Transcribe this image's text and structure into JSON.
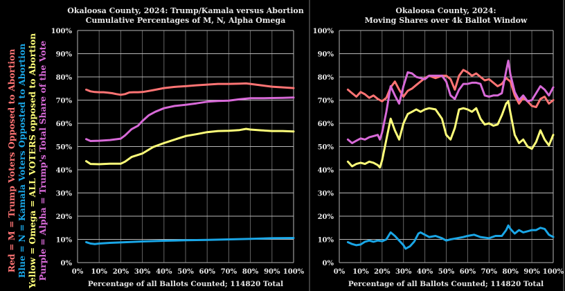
{
  "colors": {
    "background": "#000000",
    "grid": "#b8b8b8",
    "text": "#e8e8e8",
    "red": "#ff7474",
    "blue": "#1aa6e6",
    "yellow": "#ffff7a",
    "purple": "#d86ad8"
  },
  "legend": [
    {
      "parts": [
        [
          "Red = M = Trump Voters ",
          "red"
        ],
        [
          "Opposed",
          "red"
        ],
        [
          " to Abortion",
          "red"
        ]
      ],
      "color": "red",
      "text": "Red = M = Trump Voters Opposed to Abortion"
    },
    {
      "color": "blue",
      "text": "Blue = N = Kamala Voters Opposted to Abortion"
    },
    {
      "color": "yellow",
      "text": "Yellow = Omega = ALL VOTERS opposed to Abortion"
    },
    {
      "color": "purple",
      "text": "Purple = Alpha = Trump's Total Share of the Vote"
    }
  ],
  "chart_data": [
    {
      "type": "line",
      "title": "Okaloosa County, 2024: Trump/Kamala versus Abortion",
      "subtitle": "Cumulative Percentages of M, N, Alpha Omega",
      "xlabel": "Percentage of all Ballots Counted; 114820 Total",
      "ylabel": "",
      "xlim": [
        0,
        100
      ],
      "ylim": [
        0,
        100
      ],
      "grid": true,
      "xticks": [
        "0%",
        "10%",
        "20%",
        "30%",
        "40%",
        "50%",
        "60%",
        "70%",
        "80%",
        "90%",
        "100%"
      ],
      "yticks": [
        "0%",
        "10%",
        "20%",
        "30%",
        "40%",
        "50%",
        "60%",
        "70%",
        "80%",
        "90%",
        "100%"
      ],
      "series": [
        {
          "name": "Red = M",
          "color": "red",
          "x": [
            4,
            6,
            8,
            10,
            12,
            14,
            16,
            18,
            20,
            22,
            24,
            26,
            28,
            30,
            32,
            35,
            40,
            45,
            50,
            55,
            60,
            65,
            70,
            75,
            78,
            80,
            85,
            90,
            95,
            100
          ],
          "values": [
            74.5,
            73.8,
            73.5,
            73.4,
            73.4,
            73.2,
            73.0,
            72.6,
            72.3,
            72.6,
            73.3,
            73.4,
            73.4,
            73.5,
            73.8,
            74.3,
            75.2,
            75.7,
            76.0,
            76.4,
            76.7,
            77.0,
            77.0,
            77.1,
            77.2,
            77.0,
            76.4,
            75.8,
            75.5,
            75.2
          ]
        },
        {
          "name": "Purple = Alpha",
          "color": "purple",
          "x": [
            4,
            6,
            10,
            15,
            20,
            22,
            25,
            28,
            30,
            33,
            36,
            40,
            45,
            50,
            55,
            60,
            65,
            70,
            75,
            80,
            85,
            90,
            95,
            100
          ],
          "values": [
            53.2,
            52.4,
            52.5,
            52.8,
            53.4,
            54.8,
            57.5,
            59.0,
            61.0,
            63.5,
            65.0,
            66.5,
            67.5,
            68.0,
            68.6,
            69.3,
            69.6,
            69.8,
            70.4,
            70.8,
            70.8,
            70.9,
            71.0,
            71.1
          ]
        },
        {
          "name": "Yellow = Omega",
          "color": "yellow",
          "x": [
            4,
            6,
            10,
            15,
            20,
            22,
            25,
            30,
            35,
            40,
            45,
            50,
            55,
            60,
            65,
            70,
            75,
            78,
            80,
            85,
            90,
            95,
            100
          ],
          "values": [
            43.7,
            42.5,
            42.4,
            42.6,
            42.6,
            43.5,
            45.5,
            47.0,
            49.8,
            51.5,
            53.0,
            54.5,
            55.3,
            56.2,
            56.7,
            56.8,
            57.1,
            57.6,
            57.3,
            57.0,
            56.7,
            56.7,
            56.5
          ]
        },
        {
          "name": "Blue = N",
          "color": "blue",
          "x": [
            4,
            6,
            8,
            10,
            15,
            20,
            30,
            40,
            50,
            60,
            70,
            80,
            90,
            100
          ],
          "values": [
            8.8,
            8.2,
            8.0,
            8.2,
            8.5,
            8.7,
            9.1,
            9.4,
            9.6,
            9.8,
            10.0,
            10.2,
            10.5,
            10.6
          ]
        }
      ]
    },
    {
      "type": "line",
      "title": "Okaloosa County, 2024:",
      "subtitle": "Moving Shares over 4k Ballot Window",
      "xlabel": "Percentage of all Ballots Counted; 114820 Total",
      "ylabel": "",
      "xlim": [
        0,
        100
      ],
      "ylim": [
        0,
        100
      ],
      "grid": true,
      "xticks": [
        "0%",
        "10%",
        "20%",
        "30%",
        "40%",
        "50%",
        "60%",
        "70%",
        "80%",
        "90%",
        "100%"
      ],
      "yticks": [
        "0%",
        "10%",
        "20%",
        "30%",
        "40%",
        "50%",
        "60%",
        "70%",
        "80%",
        "90%",
        "100%"
      ],
      "series": [
        {
          "name": "Red = M",
          "color": "red",
          "x": [
            4,
            6,
            8,
            10,
            12,
            14,
            16,
            18,
            20,
            22,
            24,
            26,
            28,
            30,
            32,
            34,
            36,
            38,
            40,
            42,
            45,
            48,
            50,
            52,
            54,
            56,
            58,
            60,
            62,
            64,
            66,
            68,
            70,
            72,
            74,
            76,
            78,
            80,
            82,
            84,
            86,
            88,
            90,
            92,
            94,
            96,
            98,
            100
          ],
          "values": [
            74.5,
            73.0,
            71.5,
            73.5,
            72.5,
            71.0,
            72.0,
            70.5,
            69.5,
            71.0,
            75.5,
            78.0,
            74.5,
            71.5,
            74.0,
            75.0,
            76.5,
            78.0,
            79.5,
            80.5,
            79.5,
            80.5,
            80.5,
            79.0,
            74.5,
            80.5,
            83.0,
            82.0,
            80.5,
            81.5,
            80.0,
            78.5,
            79.0,
            77.5,
            76.0,
            77.0,
            79.5,
            78.0,
            72.0,
            68.5,
            71.0,
            69.5,
            67.5,
            67.0,
            70.5,
            71.5,
            68.5,
            70.0
          ]
        },
        {
          "name": "Purple = Alpha",
          "color": "purple",
          "x": [
            4,
            6,
            8,
            10,
            12,
            14,
            16,
            18,
            19,
            20,
            22,
            24,
            26,
            28,
            30,
            32,
            34,
            36,
            38,
            40,
            42,
            45,
            48,
            50,
            52,
            54,
            56,
            58,
            60,
            62,
            64,
            66,
            68,
            70,
            72,
            74,
            76,
            78,
            79,
            80,
            82,
            84,
            86,
            88,
            90,
            92,
            94,
            96,
            98,
            100
          ],
          "values": [
            53.0,
            51.5,
            52.5,
            53.5,
            53.0,
            54.0,
            54.5,
            55.0,
            53.0,
            56.0,
            65.0,
            76.0,
            72.0,
            68.5,
            76.0,
            82.0,
            81.5,
            80.0,
            79.5,
            79.0,
            80.5,
            80.5,
            80.5,
            78.0,
            72.0,
            70.5,
            74.5,
            77.0,
            77.0,
            77.5,
            77.5,
            77.0,
            72.0,
            71.5,
            72.0,
            72.0,
            73.0,
            82.5,
            87.0,
            81.0,
            73.5,
            70.0,
            72.0,
            69.5,
            70.0,
            73.0,
            76.0,
            74.5,
            72.0,
            75.5
          ]
        },
        {
          "name": "Yellow = Omega",
          "color": "yellow",
          "x": [
            4,
            6,
            8,
            10,
            12,
            14,
            16,
            18,
            19,
            20,
            22,
            24,
            26,
            28,
            30,
            32,
            34,
            36,
            38,
            40,
            42,
            45,
            48,
            50,
            52,
            54,
            56,
            58,
            60,
            62,
            64,
            66,
            68,
            70,
            72,
            74,
            76,
            78,
            79,
            80,
            82,
            84,
            86,
            88,
            90,
            92,
            94,
            96,
            98,
            100
          ],
          "values": [
            43.5,
            41.5,
            42.5,
            43.0,
            42.5,
            43.5,
            43.0,
            42.0,
            41.0,
            44.0,
            53.0,
            62.0,
            57.0,
            53.0,
            60.0,
            64.0,
            65.0,
            66.0,
            65.0,
            66.0,
            66.5,
            66.0,
            62.0,
            55.0,
            53.0,
            58.0,
            66.0,
            66.5,
            66.0,
            65.0,
            66.5,
            62.0,
            59.5,
            60.0,
            59.0,
            59.5,
            63.5,
            68.5,
            69.5,
            64.5,
            55.0,
            51.5,
            53.0,
            50.0,
            49.0,
            52.0,
            57.0,
            53.0,
            50.5,
            55.0
          ]
        },
        {
          "name": "Blue = N",
          "color": "blue",
          "x": [
            4,
            6,
            8,
            10,
            12,
            14,
            16,
            18,
            20,
            22,
            24,
            26,
            28,
            30,
            31,
            33,
            35,
            37,
            38,
            40,
            42,
            45,
            48,
            50,
            52,
            55,
            58,
            60,
            63,
            66,
            70,
            73,
            76,
            78,
            79,
            80,
            82,
            84,
            86,
            88,
            90,
            92,
            94,
            96,
            98,
            100
          ],
          "values": [
            8.8,
            8.0,
            7.5,
            7.8,
            9.0,
            9.5,
            9.0,
            9.5,
            9.2,
            10.0,
            13.0,
            11.5,
            9.5,
            7.5,
            6.0,
            7.0,
            9.0,
            12.5,
            13.0,
            12.0,
            11.0,
            11.5,
            10.5,
            9.5,
            10.0,
            10.5,
            11.0,
            11.5,
            12.0,
            11.0,
            10.5,
            11.5,
            11.5,
            14.0,
            16.0,
            14.5,
            12.5,
            14.0,
            13.0,
            13.5,
            14.0,
            14.0,
            15.0,
            14.5,
            12.0,
            11.0
          ]
        }
      ]
    }
  ]
}
